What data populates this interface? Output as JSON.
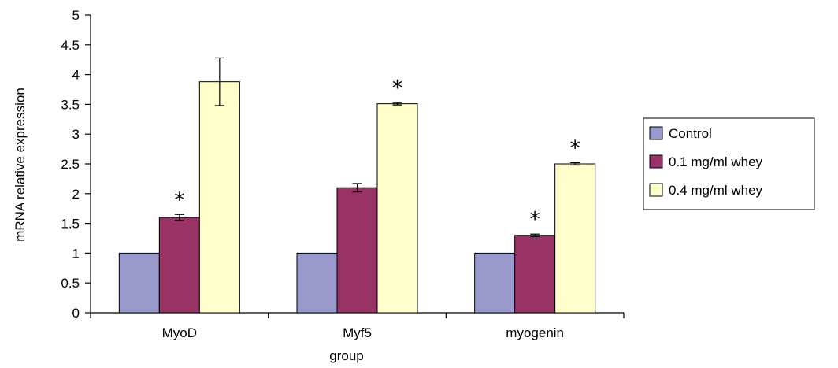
{
  "chart_data": {
    "type": "bar",
    "title": "",
    "xlabel": "group",
    "ylabel": "mRNA relative expression",
    "ylim": [
      0,
      5
    ],
    "yticks": [
      "0",
      "0.5",
      "1",
      "1.5",
      "2",
      "2.5",
      "3",
      "3.5",
      "4",
      "4.5",
      "5"
    ],
    "categories": [
      "MyoD",
      "Myf5",
      "myogenin"
    ],
    "grid": false,
    "legend_position": "right",
    "significance_marker": "*",
    "series": [
      {
        "name": "Control",
        "color": "#9999cc",
        "values": [
          1,
          1,
          1
        ],
        "errors": [
          0,
          0,
          0
        ],
        "significant": [
          false,
          false,
          false
        ]
      },
      {
        "name": "0.1 mg/ml whey",
        "color": "#993366",
        "values": [
          1.6,
          2.1,
          1.3
        ],
        "errors": [
          0.05,
          0.07,
          0.02
        ],
        "significant": [
          true,
          false,
          true
        ]
      },
      {
        "name": "0.4 mg/ml whey",
        "color": "#ffffcc",
        "values": [
          3.88,
          3.51,
          2.5
        ],
        "errors": [
          0.4,
          0.02,
          0.02
        ],
        "significant": [
          false,
          true,
          true
        ]
      }
    ]
  }
}
